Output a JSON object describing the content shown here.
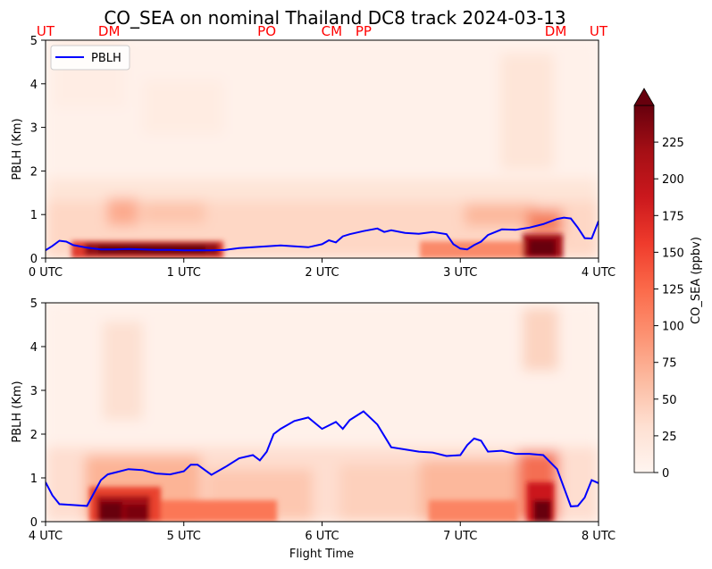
{
  "figure": {
    "title": "CO_SEA on nominal Thailand DC8 track 2024-03-13",
    "xlabel": "Flight Time"
  },
  "chart_data": [
    {
      "type": "heatmap",
      "panel": "top",
      "ylabel": "PBLH (Km)",
      "xlim": [
        0,
        4
      ],
      "ylim": [
        0,
        5
      ],
      "xticks": [
        0,
        1,
        2,
        3,
        4
      ],
      "xtick_labels": [
        "0 UTC",
        "1 UTC",
        "2 UTC",
        "3 UTC",
        "4 UTC"
      ],
      "yticks": [
        0,
        1,
        2,
        3,
        4,
        5
      ],
      "ytick_labels": [
        "0",
        "1",
        "2",
        "3",
        "4",
        "5"
      ],
      "site_labels": [
        {
          "x": 0.0,
          "label": "UT"
        },
        {
          "x": 0.46,
          "label": "DM"
        },
        {
          "x": 1.6,
          "label": "PO"
        },
        {
          "x": 2.07,
          "label": "CM"
        },
        {
          "x": 2.3,
          "label": "PP"
        },
        {
          "x": 3.69,
          "label": "DM"
        },
        {
          "x": 4.0,
          "label": "UT"
        }
      ],
      "legend": {
        "position": "upper-left",
        "entries": [
          "PBLH"
        ]
      },
      "series": [
        {
          "name": "PBLH",
          "color": "#0000ff",
          "x": [
            0.0,
            0.05,
            0.1,
            0.15,
            0.2,
            0.3,
            0.4,
            0.5,
            0.6,
            0.7,
            0.8,
            0.9,
            1.0,
            1.1,
            1.2,
            1.3,
            1.4,
            1.5,
            1.6,
            1.7,
            1.8,
            1.9,
            2.0,
            2.05,
            2.1,
            2.15,
            2.2,
            2.3,
            2.4,
            2.45,
            2.5,
            2.6,
            2.7,
            2.8,
            2.9,
            2.95,
            3.0,
            3.05,
            3.1,
            3.15,
            3.2,
            3.3,
            3.4,
            3.5,
            3.6,
            3.7,
            3.75,
            3.8,
            3.85,
            3.9,
            3.95,
            4.0
          ],
          "y": [
            0.18,
            0.28,
            0.4,
            0.38,
            0.3,
            0.24,
            0.2,
            0.2,
            0.21,
            0.2,
            0.19,
            0.19,
            0.18,
            0.18,
            0.18,
            0.19,
            0.23,
            0.25,
            0.27,
            0.29,
            0.27,
            0.25,
            0.32,
            0.41,
            0.36,
            0.5,
            0.55,
            0.62,
            0.68,
            0.6,
            0.64,
            0.58,
            0.56,
            0.6,
            0.55,
            0.32,
            0.22,
            0.2,
            0.3,
            0.38,
            0.53,
            0.66,
            0.65,
            0.7,
            0.78,
            0.9,
            0.93,
            0.91,
            0.7,
            0.46,
            0.45,
            0.85
          ]
        }
      ]
    },
    {
      "type": "heatmap",
      "panel": "bottom",
      "ylabel": "PBLH (Km)",
      "xlabel": "Flight Time",
      "xlim": [
        4,
        8
      ],
      "ylim": [
        0,
        5
      ],
      "xticks": [
        4,
        5,
        6,
        7,
        8
      ],
      "xtick_labels": [
        "4 UTC",
        "5 UTC",
        "6 UTC",
        "7 UTC",
        "8 UTC"
      ],
      "yticks": [
        0,
        1,
        2,
        3,
        4,
        5
      ],
      "ytick_labels": [
        "0",
        "1",
        "2",
        "3",
        "4",
        "5"
      ],
      "series": [
        {
          "name": "PBLH",
          "color": "#0000ff",
          "x": [
            4.0,
            4.05,
            4.1,
            4.2,
            4.3,
            4.4,
            4.45,
            4.5,
            4.6,
            4.7,
            4.8,
            4.9,
            5.0,
            5.05,
            5.1,
            5.2,
            5.3,
            5.4,
            5.5,
            5.55,
            5.6,
            5.65,
            5.7,
            5.8,
            5.9,
            6.0,
            6.1,
            6.15,
            6.2,
            6.25,
            6.3,
            6.4,
            6.5,
            6.6,
            6.7,
            6.8,
            6.9,
            7.0,
            7.05,
            7.1,
            7.15,
            7.2,
            7.3,
            7.4,
            7.5,
            7.6,
            7.7,
            7.8,
            7.85,
            7.9,
            7.95,
            8.0
          ],
          "y": [
            0.9,
            0.6,
            0.4,
            0.38,
            0.36,
            0.95,
            1.08,
            1.12,
            1.2,
            1.18,
            1.1,
            1.08,
            1.15,
            1.3,
            1.3,
            1.07,
            1.25,
            1.45,
            1.52,
            1.4,
            1.6,
            2.0,
            2.12,
            2.3,
            2.38,
            2.12,
            2.28,
            2.12,
            2.32,
            2.42,
            2.52,
            2.22,
            1.7,
            1.65,
            1.6,
            1.58,
            1.5,
            1.52,
            1.75,
            1.9,
            1.85,
            1.6,
            1.62,
            1.55,
            1.55,
            1.52,
            1.2,
            0.35,
            0.36,
            0.55,
            0.95,
            0.88
          ]
        }
      ]
    },
    {
      "type": "colorbar",
      "label": "CO_SEA (ppbv)",
      "ticks": [
        0,
        25,
        50,
        75,
        100,
        125,
        150,
        175,
        200,
        225
      ],
      "tick_labels": [
        "0",
        "25",
        "50",
        "75",
        "100",
        "125",
        "150",
        "175",
        "200",
        "225"
      ],
      "range": [
        0,
        250
      ],
      "extend": "max",
      "colormap": "Reds"
    }
  ]
}
